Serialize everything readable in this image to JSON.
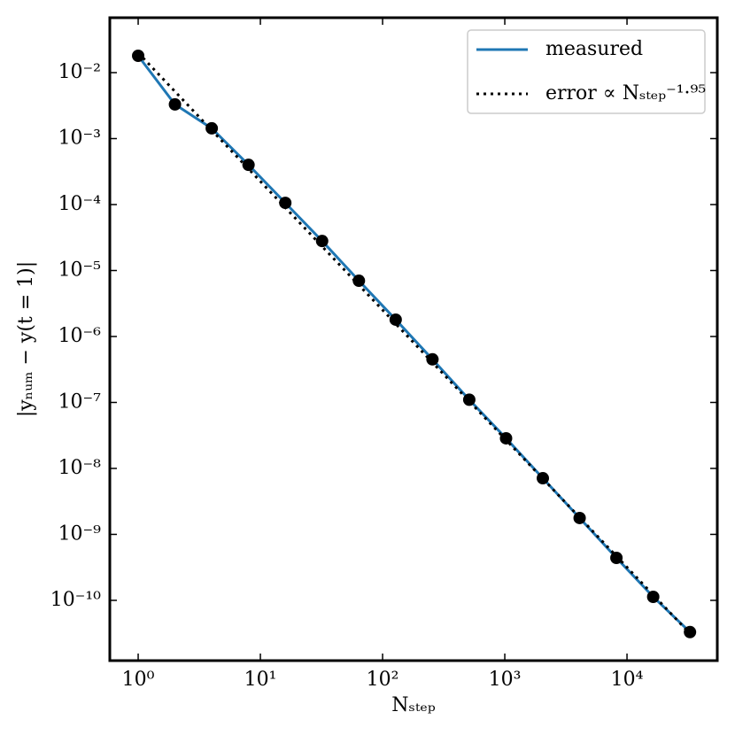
{
  "chart_data": {
    "type": "line",
    "log_x": true,
    "log_y": true,
    "xlabel": "Nₛₜₑₚ",
    "ylabel": "|yₙᵤₘ − y(t = 1)|",
    "x": [
      1,
      2,
      4,
      8,
      16,
      32,
      64,
      128,
      256,
      512,
      1024,
      2048,
      4096,
      8192,
      16384,
      32768
    ],
    "series": [
      {
        "name": "measured",
        "color": "#1f77b4",
        "marker_color": "#000000",
        "line_style": "solid",
        "values": [
          0.018,
          0.0033,
          0.00143,
          0.0004,
          0.000106,
          2.8e-05,
          7e-06,
          1.8e-06,
          4.5e-07,
          1.1e-07,
          2.86e-08,
          7.1e-09,
          1.77e-09,
          4.4e-10,
          1.13e-10,
          3.3e-11
        ]
      },
      {
        "name": "error ∝ Nₛₜₑₚ⁻¹·⁹⁵",
        "color": "#000000",
        "line_style": "dotted",
        "values": [
          0.02,
          0.00518,
          0.00134,
          0.000347,
          8.98e-05,
          2.32e-05,
          6.01e-06,
          1.56e-06,
          4.03e-07,
          1.04e-07,
          2.7e-08,
          6.98e-09,
          1.81e-09,
          4.68e-10,
          1.21e-10,
          3.13e-11
        ]
      }
    ],
    "xlim": [
      0.586,
      54800
    ],
    "ylim": [
      1.22e-11,
      0.068
    ],
    "xticks": [
      {
        "value": 1,
        "label": "10⁰"
      },
      {
        "value": 10,
        "label": "10¹"
      },
      {
        "value": 100,
        "label": "10²"
      },
      {
        "value": 1000,
        "label": "10³"
      },
      {
        "value": 10000,
        "label": "10⁴"
      }
    ],
    "yticks": [
      {
        "value": 0.01,
        "label": "10⁻²"
      },
      {
        "value": 0.001,
        "label": "10⁻³"
      },
      {
        "value": 0.0001,
        "label": "10⁻⁴"
      },
      {
        "value": 1e-05,
        "label": "10⁻⁵"
      },
      {
        "value": 1e-06,
        "label": "10⁻⁶"
      },
      {
        "value": 1e-07,
        "label": "10⁻⁷"
      },
      {
        "value": 1e-08,
        "label": "10⁻⁸"
      },
      {
        "value": 1e-09,
        "label": "10⁻⁹"
      },
      {
        "value": 1e-10,
        "label": "10⁻¹⁰"
      }
    ],
    "grid": false,
    "legend": "upper right"
  }
}
